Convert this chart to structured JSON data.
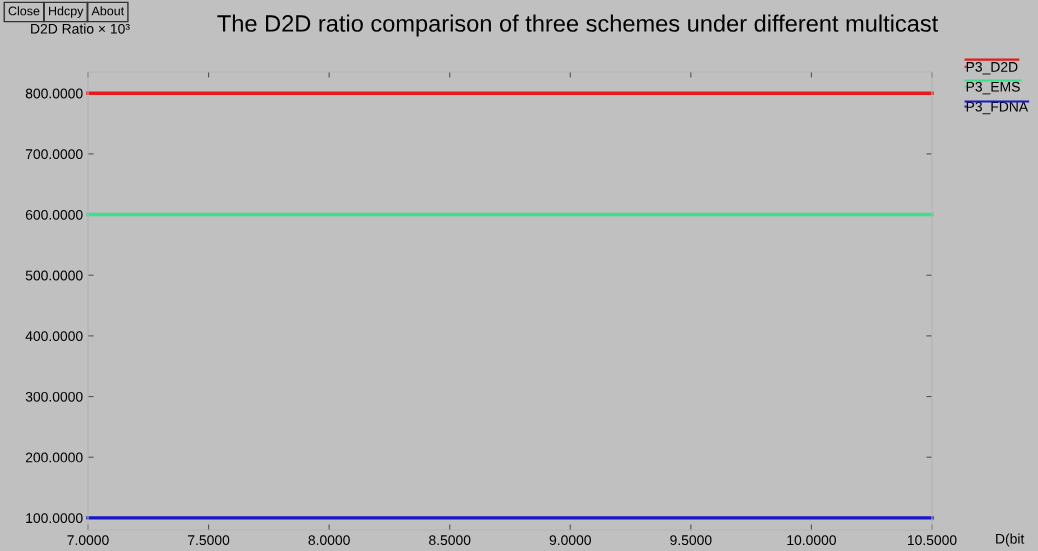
{
  "chart_data": {
    "type": "line",
    "title": "The D2D ratio comparison of three schemes under different multicast",
    "xlabel": "D(bit",
    "ylabel": "D2D Ratio × 10³",
    "annotations": [
      "Close",
      "Hdcpy",
      "About"
    ],
    "x": [
      7,
      10.5
    ],
    "series": [
      {
        "name": "P3_D2D",
        "color": "#e8191c",
        "values": [
          800,
          800
        ]
      },
      {
        "name": "P3_EMS",
        "color": "#3ae08a",
        "values": [
          600,
          600
        ]
      },
      {
        "name": "P3_FDNA",
        "color": "#1818c8",
        "values": [
          100,
          100
        ]
      }
    ],
    "xlim": [
      7,
      10.5
    ],
    "ylim": [
      80,
      835
    ],
    "xticks": [
      {
        "value": 7,
        "label": "7.0000"
      },
      {
        "value": 7.5,
        "label": "7.5000"
      },
      {
        "value": 8,
        "label": "8.0000"
      },
      {
        "value": 8.5,
        "label": "8.5000"
      },
      {
        "value": 9,
        "label": "9.0000"
      },
      {
        "value": 9.5,
        "label": "9.5000"
      },
      {
        "value": 10,
        "label": "10.0000"
      },
      {
        "value": 10.5,
        "label": "10.5000"
      }
    ],
    "yticks": [
      {
        "value": 100,
        "label": "100.0000"
      },
      {
        "value": 200,
        "label": "200.0000"
      },
      {
        "value": 300,
        "label": "300.0000"
      },
      {
        "value": 400,
        "label": "400.0000"
      },
      {
        "value": 500,
        "label": "500.0000"
      },
      {
        "value": 600,
        "label": "600.0000"
      },
      {
        "value": 700,
        "label": "700.0000"
      },
      {
        "value": 800,
        "label": "800.0000"
      }
    ],
    "grid": false,
    "legend": "top right",
    "marker": "none",
    "line_style": "solid"
  }
}
